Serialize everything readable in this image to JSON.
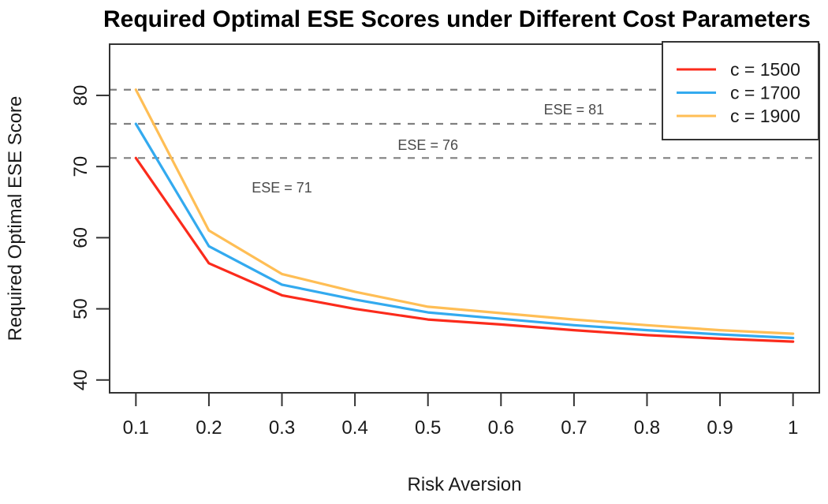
{
  "page": {
    "background": "#ffffff"
  },
  "chart_data": {
    "type": "line",
    "title": "Required Optimal ESE Scores under Different Cost Parameters",
    "xlabel": "Risk Aversion",
    "ylabel": "Required Optimal ESE Score",
    "x": [
      0.1,
      0.2,
      0.3,
      0.4,
      0.5,
      0.6,
      0.7,
      0.8,
      0.9,
      1.0
    ],
    "series": [
      {
        "name": "c = 1500",
        "color": "#FB2B1C",
        "values": [
          71.2,
          56.4,
          51.9,
          50.0,
          48.5,
          47.8,
          47.0,
          46.3,
          45.8,
          45.4
        ]
      },
      {
        "name": "c = 1700",
        "color": "#33AAEF",
        "values": [
          76.0,
          58.8,
          53.4,
          51.3,
          49.5,
          48.6,
          47.7,
          47.0,
          46.4,
          45.9
        ]
      },
      {
        "name": "c = 1900",
        "color": "#FFBE55",
        "values": [
          80.8,
          61.0,
          54.9,
          52.4,
          50.3,
          49.4,
          48.5,
          47.7,
          47.0,
          46.5
        ]
      }
    ],
    "reference_lines": [
      {
        "value": 80.8,
        "label": "ESE = 81",
        "label_x": 0.7,
        "label_y": 78.0
      },
      {
        "value": 76.0,
        "label": "ESE = 76",
        "label_x": 0.5,
        "label_y": 73.0
      },
      {
        "value": 71.2,
        "label": "ESE = 71",
        "label_x": 0.3,
        "label_y": 67.0
      }
    ],
    "reference_line_color": "#808080",
    "reference_label_color": "#4a4a4a",
    "xticks": [
      0.1,
      0.2,
      0.3,
      0.4,
      0.5,
      0.6,
      0.7,
      0.8,
      0.9,
      1
    ],
    "xtick_labels": [
      "0.1",
      "0.2",
      "0.3",
      "0.4",
      "0.5",
      "0.6",
      "0.7",
      "0.8",
      "0.9",
      "1"
    ],
    "yticks": [
      40,
      50,
      60,
      70,
      80
    ],
    "ytick_labels": [
      "40",
      "50",
      "60",
      "70",
      "80"
    ],
    "xlim": [
      0.064,
      1.036
    ],
    "ylim": [
      38.2,
      87.2
    ],
    "grid": false,
    "legend": {
      "position": "top-right",
      "entries": [
        "c = 1500",
        "c = 1700",
        "c = 1900"
      ]
    },
    "axis_color": "#333333",
    "text_color": "#1a1a1a"
  }
}
